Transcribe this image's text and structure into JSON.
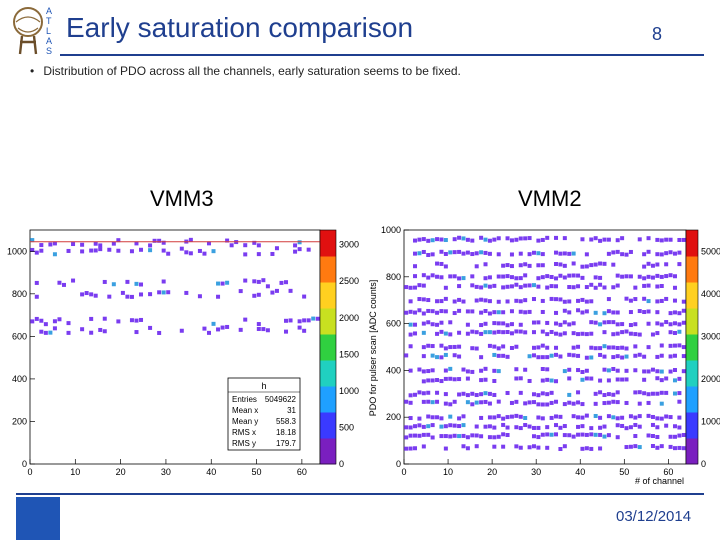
{
  "slide": {
    "title": "Early saturation comparison",
    "page_number": "8",
    "bullet": "Distribution of PDO across all the channels, early saturation seems to be fixed.",
    "footer_date": "03/12/2014",
    "logo_text": "ATLAS"
  },
  "colors": {
    "accent": "#1f3f8f",
    "footer_box": "#1f55b5",
    "point": "#7a3cf0"
  },
  "plots": {
    "vmm3": {
      "label": "VMM3",
      "x_ticks": [
        "0",
        "10",
        "20",
        "30",
        "40",
        "50",
        "60"
      ],
      "y_ticks": [
        "0",
        "200",
        "400",
        "600",
        "800",
        "1000"
      ],
      "z_ticks": [
        "0",
        "500",
        "1000",
        "1500",
        "2000",
        "2500",
        "3000"
      ],
      "stats": {
        "title": "h",
        "rows": [
          {
            "k": "Entries",
            "v": "5049622"
          },
          {
            "k": "Mean x",
            "v": "31"
          },
          {
            "k": "Mean y",
            "v": "558.3"
          },
          {
            "k": "RMS x",
            "v": "18.18"
          },
          {
            "k": "RMS y",
            "v": "179.7"
          }
        ]
      }
    },
    "vmm2": {
      "label": "VMM2",
      "ylabel": "PDO for pulser scan [ADC counts]",
      "xlabel": "# of channel",
      "x_ticks": [
        "0",
        "10",
        "20",
        "30",
        "40",
        "50",
        "60"
      ],
      "y_ticks": [
        "0",
        "200",
        "400",
        "600",
        "800",
        "1000"
      ],
      "z_ticks": [
        "0",
        "1000",
        "2000",
        "3000",
        "4000",
        "5000"
      ]
    }
  },
  "chart_data": [
    {
      "type": "heatmap",
      "title": "VMM3",
      "xlabel": "",
      "ylabel": "",
      "xlim": [
        0,
        64
      ],
      "ylim": [
        0,
        1100
      ],
      "zlim": [
        0,
        3200
      ],
      "bands_y": [
        1040,
        1000,
        850,
        800,
        670,
        630
      ],
      "saturation_line_y": 1045
    },
    {
      "type": "heatmap",
      "title": "VMM2",
      "xlabel": "# of channel",
      "ylabel": "PDO for pulser scan [ADC counts]",
      "xlim": [
        0,
        64
      ],
      "ylim": [
        0,
        1000
      ],
      "zlim": [
        0,
        5500
      ],
      "bands_y": [
        960,
        900,
        850,
        800,
        760,
        700,
        650,
        600,
        560,
        500,
        460,
        400,
        360,
        300,
        260,
        200,
        160,
        120,
        70
      ]
    }
  ]
}
